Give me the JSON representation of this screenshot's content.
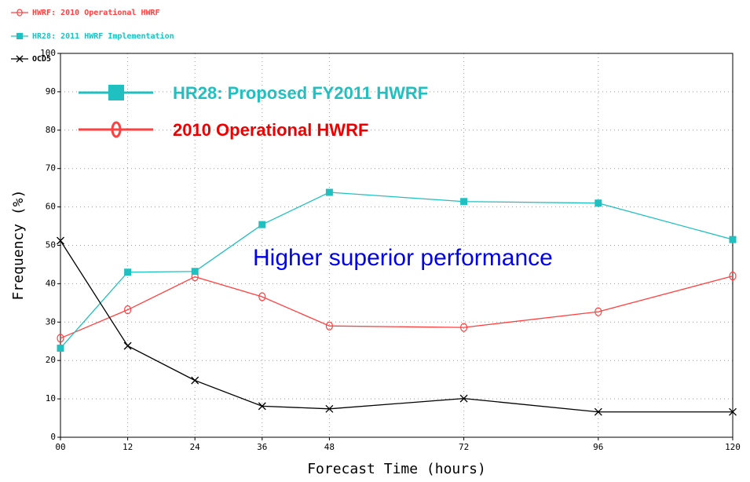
{
  "chart_data": {
    "type": "line",
    "x": [
      0,
      12,
      24,
      36,
      48,
      72,
      96,
      120
    ],
    "series": [
      {
        "name": "HWRF: 2010 Operational HWRF",
        "color": "#ff4040",
        "marker": "circle",
        "values": [
          25.8,
          33.2,
          41.8,
          36.6,
          29,
          28.6,
          32.7,
          42
        ]
      },
      {
        "name": "HR28: 2011 HWRF Implementation",
        "color": "#20c0c0",
        "marker": "square",
        "values": [
          23.2,
          43,
          43.2,
          55.4,
          63.8,
          61.4,
          61,
          51.5
        ]
      },
      {
        "name": "OCD5",
        "color": "#000000",
        "marker": "x",
        "values": [
          51.2,
          23.8,
          14.8,
          8.1,
          7.4,
          10.1,
          6.6,
          6.6
        ]
      }
    ],
    "xlim": [
      0,
      120
    ],
    "xticks": [
      {
        "value": 0,
        "label": "00"
      },
      12,
      24,
      36,
      48,
      72,
      96,
      120
    ],
    "ylim": [
      0,
      100
    ],
    "yticks": [
      0,
      10,
      20,
      30,
      40,
      50,
      60,
      70,
      80,
      90,
      100
    ],
    "xlabel": "Forecast Time (hours)",
    "ylabel": "Frequency (%)",
    "grid": true,
    "annotations": [
      "HR28: Proposed FY2011 HWRF",
      "2010 Operational HWRF",
      "Higher superior performance"
    ]
  }
}
